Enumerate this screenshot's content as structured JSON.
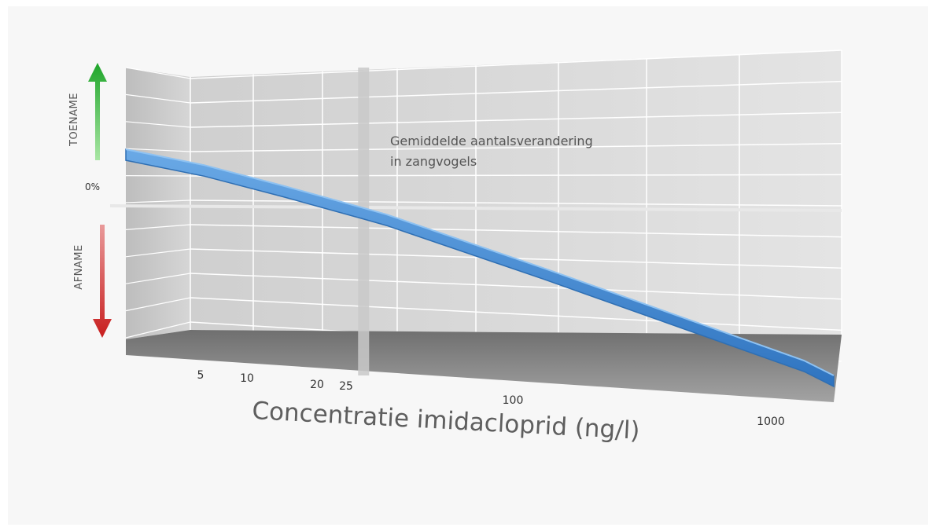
{
  "colors": {
    "background": "#f7f7f7",
    "wall": "#d9d9d9",
    "grid": "#ffffff",
    "floor": "#8c8c8c",
    "ribbon": "#4a8fd6",
    "ribbon_edge": "#2f6fb3",
    "increase_arrow": "#3cb54a",
    "decrease_arrow": "#d32f2f",
    "marker": "#c9c9c9"
  },
  "icons": {
    "increase": "arrow-up-icon",
    "decrease": "arrow-down-icon"
  },
  "chart_data": {
    "type": "line",
    "title": "",
    "xlabel": "Concentratie imidacloprid (ng/l)",
    "ylabel": "",
    "x_scale": "log",
    "x_ticks": [
      "5",
      "10",
      "20",
      "25",
      "100",
      "1000"
    ],
    "x_tick_values": [
      5,
      10,
      20,
      25,
      100,
      1000
    ],
    "xlim": [
      2.5,
      1300
    ],
    "ylim": [
      -1,
      1
    ],
    "y_zero_label": "0%",
    "y_increase_label": "TOENAME",
    "y_decrease_label": "AFNAME",
    "marker_x": 20,
    "annotation": [
      "Gemiddelde aantalsverandering",
      "in zangvogels"
    ],
    "series": [
      {
        "name": "",
        "x": [
          2.5,
          5,
          10,
          20,
          25,
          100,
          1000,
          1300
        ],
        "y": [
          0.62,
          0.44,
          0.22,
          0.0,
          -0.05,
          -0.4,
          -0.92,
          -1.0
        ]
      }
    ],
    "grid": true,
    "legend": "none"
  }
}
